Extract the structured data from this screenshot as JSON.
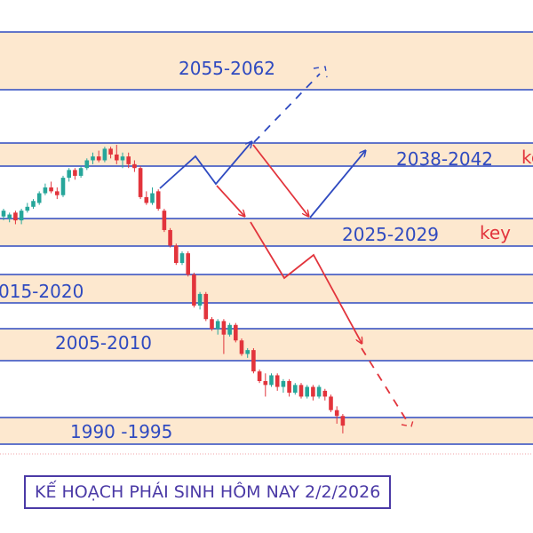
{
  "chart_data": {
    "type": "candlestick",
    "title": "KẾ HOẠCH PHÁI SINH HÔM NAY 2/2/2026",
    "zones": [
      {
        "label": "2055-2062",
        "key": ""
      },
      {
        "label": "2038-2042",
        "key": "key"
      },
      {
        "label": "2025-2029",
        "key": "key"
      },
      {
        "label": "015-2020",
        "key": ""
      },
      {
        "label": "2005-2010",
        "key": ""
      },
      {
        "label": "1990 -1995",
        "key": ""
      }
    ],
    "candles": [
      {
        "o": 0.35,
        "c": 0.38,
        "h": 0.39,
        "l": 0.33
      },
      {
        "o": 0.34,
        "c": 0.36,
        "h": 0.37,
        "l": 0.32
      },
      {
        "o": 0.37,
        "c": 0.33,
        "h": 0.38,
        "l": 0.31
      },
      {
        "o": 0.33,
        "c": 0.38,
        "h": 0.39,
        "l": 0.31
      },
      {
        "o": 0.38,
        "c": 0.4,
        "h": 0.42,
        "l": 0.37
      },
      {
        "o": 0.4,
        "c": 0.43,
        "h": 0.44,
        "l": 0.39
      },
      {
        "o": 0.42,
        "c": 0.47,
        "h": 0.48,
        "l": 0.41
      },
      {
        "o": 0.47,
        "c": 0.5,
        "h": 0.52,
        "l": 0.46
      },
      {
        "o": 0.5,
        "c": 0.48,
        "h": 0.53,
        "l": 0.47
      },
      {
        "o": 0.48,
        "c": 0.46,
        "h": 0.5,
        "l": 0.44
      },
      {
        "o": 0.46,
        "c": 0.55,
        "h": 0.56,
        "l": 0.45
      },
      {
        "o": 0.55,
        "c": 0.59,
        "h": 0.6,
        "l": 0.53
      },
      {
        "o": 0.59,
        "c": 0.56,
        "h": 0.6,
        "l": 0.54
      },
      {
        "o": 0.56,
        "c": 0.6,
        "h": 0.61,
        "l": 0.55
      },
      {
        "o": 0.6,
        "c": 0.64,
        "h": 0.65,
        "l": 0.59
      },
      {
        "o": 0.64,
        "c": 0.66,
        "h": 0.68,
        "l": 0.62
      },
      {
        "o": 0.66,
        "c": 0.64,
        "h": 0.69,
        "l": 0.63
      },
      {
        "o": 0.64,
        "c": 0.7,
        "h": 0.71,
        "l": 0.63
      },
      {
        "o": 0.7,
        "c": 0.67,
        "h": 0.71,
        "l": 0.65
      },
      {
        "o": 0.67,
        "c": 0.64,
        "h": 0.72,
        "l": 0.62
      },
      {
        "o": 0.64,
        "c": 0.66,
        "h": 0.68,
        "l": 0.6
      },
      {
        "o": 0.66,
        "c": 0.62,
        "h": 0.68,
        "l": 0.6
      },
      {
        "o": 0.62,
        "c": 0.6,
        "h": 0.64,
        "l": 0.58
      },
      {
        "o": 0.6,
        "c": 0.45,
        "h": 0.61,
        "l": 0.44
      },
      {
        "o": 0.45,
        "c": 0.42,
        "h": 0.48,
        "l": 0.41
      },
      {
        "o": 0.42,
        "c": 0.47,
        "h": 0.5,
        "l": 0.41
      },
      {
        "o": 0.48,
        "c": 0.39,
        "h": 0.49,
        "l": 0.38
      },
      {
        "o": 0.38,
        "c": 0.28,
        "h": 0.39,
        "l": 0.27
      },
      {
        "o": 0.28,
        "c": 0.2,
        "h": 0.29,
        "l": 0.19
      },
      {
        "o": 0.2,
        "c": 0.11,
        "h": 0.21,
        "l": 0.1
      },
      {
        "o": 0.11,
        "c": 0.16,
        "h": 0.17,
        "l": 0.1
      },
      {
        "o": 0.16,
        "c": 0.05,
        "h": 0.17,
        "l": 0.04
      },
      {
        "o": 0.05,
        "c": -0.11,
        "h": 0.06,
        "l": -0.12
      },
      {
        "o": -0.11,
        "c": -0.05,
        "h": -0.04,
        "l": -0.13
      },
      {
        "o": -0.05,
        "c": -0.18,
        "h": -0.04,
        "l": -0.19
      },
      {
        "o": -0.18,
        "c": -0.23,
        "h": -0.17,
        "l": -0.24
      },
      {
        "o": -0.23,
        "c": -0.19,
        "h": -0.18,
        "l": -0.26
      },
      {
        "o": -0.19,
        "c": -0.26,
        "h": -0.18,
        "l": -0.36
      },
      {
        "o": -0.26,
        "c": -0.21,
        "h": -0.2,
        "l": -0.27
      },
      {
        "o": -0.21,
        "c": -0.29,
        "h": -0.2,
        "l": -0.3
      },
      {
        "o": -0.29,
        "c": -0.36,
        "h": -0.28,
        "l": -0.37
      },
      {
        "o": -0.36,
        "c": -0.34,
        "h": -0.33,
        "l": -0.38
      },
      {
        "o": -0.34,
        "c": -0.45,
        "h": -0.33,
        "l": -0.46
      },
      {
        "o": -0.45,
        "c": -0.5,
        "h": -0.44,
        "l": -0.51
      },
      {
        "o": -0.5,
        "c": -0.52,
        "h": -0.46,
        "l": -0.58
      },
      {
        "o": -0.52,
        "c": -0.47,
        "h": -0.46,
        "l": -0.53
      },
      {
        "o": -0.47,
        "c": -0.53,
        "h": -0.46,
        "l": -0.55
      },
      {
        "o": -0.53,
        "c": -0.5,
        "h": -0.49,
        "l": -0.56
      },
      {
        "o": -0.5,
        "c": -0.56,
        "h": -0.49,
        "l": -0.58
      },
      {
        "o": -0.56,
        "c": -0.52,
        "h": -0.51,
        "l": -0.57
      },
      {
        "o": -0.52,
        "c": -0.58,
        "h": -0.51,
        "l": -0.59
      },
      {
        "o": -0.58,
        "c": -0.53,
        "h": -0.52,
        "l": -0.59
      },
      {
        "o": -0.53,
        "c": -0.58,
        "h": -0.52,
        "l": -0.6
      },
      {
        "o": -0.58,
        "c": -0.53,
        "h": -0.52,
        "l": -0.59
      },
      {
        "o": -0.55,
        "c": -0.58,
        "h": -0.54,
        "l": -0.6
      },
      {
        "o": -0.58,
        "c": -0.65,
        "h": -0.57,
        "l": -0.66
      },
      {
        "o": -0.65,
        "c": -0.68,
        "h": -0.63,
        "l": -0.72
      },
      {
        "o": -0.68,
        "c": -0.73,
        "h": -0.67,
        "l": -0.77
      }
    ],
    "colors": {
      "up": "#26a69a",
      "down": "#e2343c",
      "zone_fill": "#fde8cf",
      "zone_line": "#2f4ac0",
      "path_blue": "#2f4ac0",
      "path_red": "#e2343c"
    },
    "grid": false,
    "legend": "none"
  }
}
